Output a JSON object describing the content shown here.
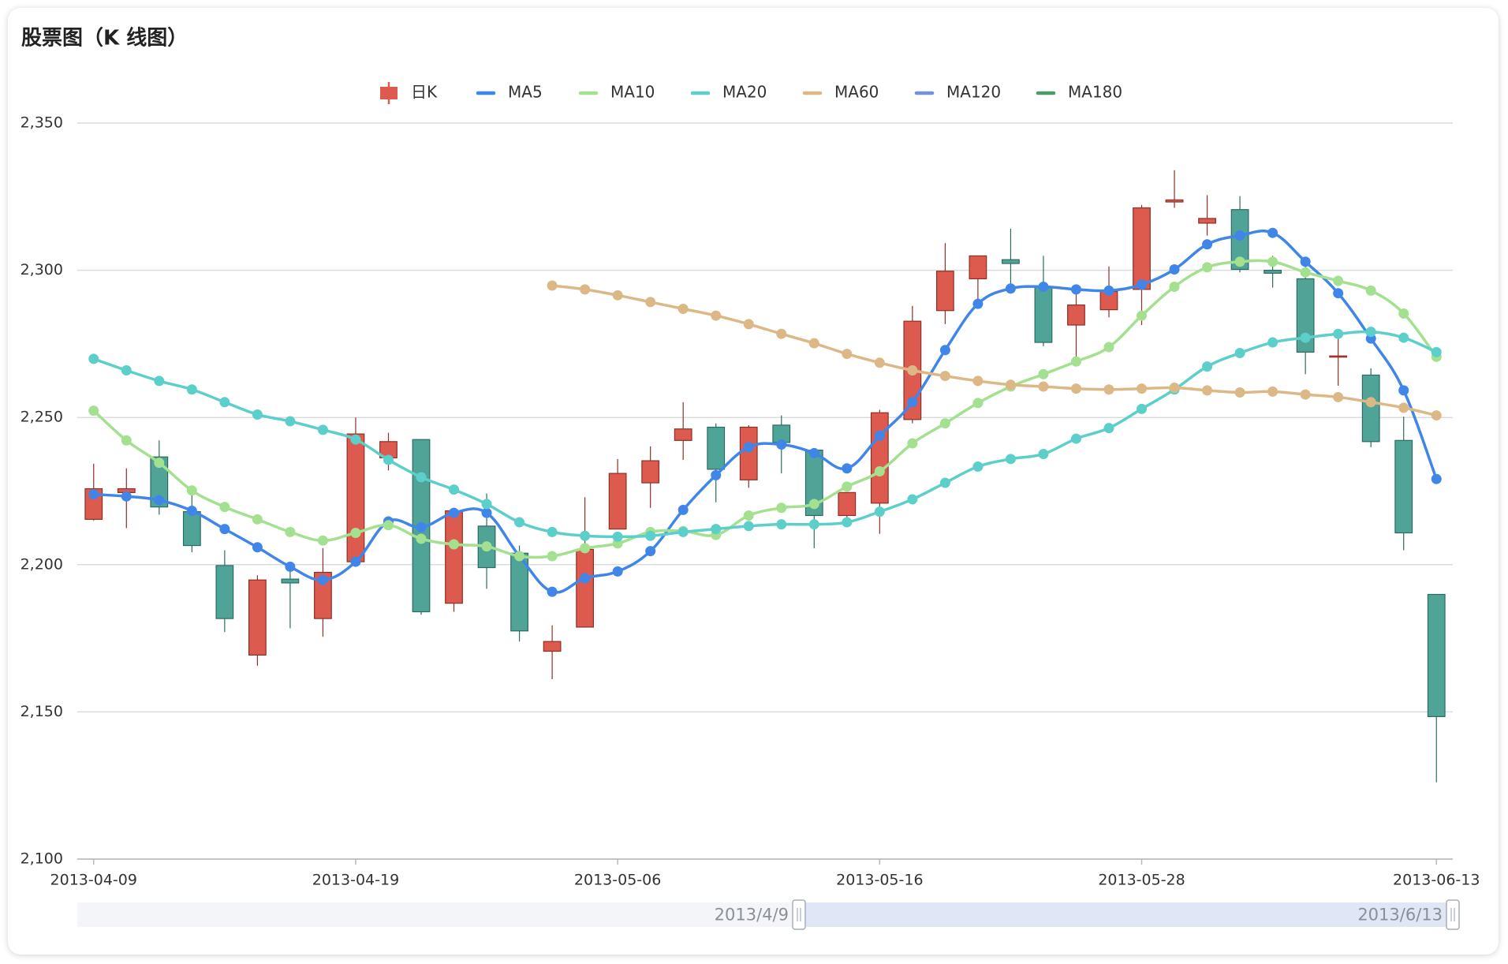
{
  "chart_data": {
    "type": "candlestick",
    "title": "股票图（K 线图）",
    "categories": [
      "2013-04-09",
      null,
      null,
      null,
      null,
      null,
      null,
      null,
      "2013-04-19",
      null,
      null,
      null,
      null,
      null,
      null,
      null,
      "2013-05-06",
      null,
      null,
      null,
      null,
      null,
      null,
      null,
      "2013-05-16",
      null,
      null,
      null,
      null,
      null,
      null,
      null,
      "2013-05-28",
      null,
      null,
      null,
      null,
      null,
      null,
      null,
      null,
      "2013-06-13"
    ],
    "series": [
      {
        "name": "日K",
        "type": "candlestick",
        "up_color": "#dd5a4e",
        "down_color": "#4fa497",
        "open": [
          2215.4,
          2224.5,
          2236.6,
          2218.0,
          2199.7,
          2169.3,
          2195.1,
          2181.7,
          2201.0,
          2236.3,
          2242.5,
          2186.9,
          2213.1,
          2203.9,
          2170.6,
          2178.8,
          2212.1,
          2227.8,
          2242.2,
          2246.7,
          2228.8,
          2247.4,
          2238.9,
          2216.7,
          2220.9,
          2249.3,
          2286.3,
          2297.1,
          2303.6,
          2294.4,
          2281.4,
          2286.6,
          2293.5,
          2323.2,
          2316.0,
          2320.6,
          2300.0,
          2297.1,
          2270.6,
          2264.4,
          2242.2,
          2189.9
        ],
        "close": [
          2225.8,
          2225.8,
          2219.6,
          2206.5,
          2181.7,
          2194.8,
          2193.8,
          2197.4,
          2244.4,
          2241.8,
          2184.0,
          2218.3,
          2199.0,
          2177.5,
          2173.9,
          2205.2,
          2231.0,
          2235.3,
          2246.1,
          2232.4,
          2246.7,
          2241.5,
          2216.7,
          2224.5,
          2251.6,
          2282.7,
          2299.7,
          2304.9,
          2302.3,
          2275.5,
          2288.2,
          2292.8,
          2321.2,
          2323.9,
          2317.6,
          2300.3,
          2299.0,
          2272.2,
          2270.9,
          2241.8,
          2210.8,
          2148.4
        ],
        "low": [
          2215.0,
          2212.4,
          2217.0,
          2204.2,
          2177.1,
          2165.7,
          2178.4,
          2175.5,
          2200.7,
          2232.0,
          2183.0,
          2184.0,
          2191.8,
          2173.9,
          2161.1,
          2178.8,
          2212.1,
          2219.3,
          2235.6,
          2221.2,
          2226.1,
          2231.0,
          2205.6,
          2215.4,
          2210.5,
          2248.0,
          2281.7,
          2289.9,
          2292.2,
          2274.2,
          2269.3,
          2284.0,
          2281.4,
          2321.2,
          2311.8,
          2299.3,
          2294.1,
          2264.7,
          2260.8,
          2239.9,
          2204.9,
          2126.1
        ],
        "high": [
          2234.3,
          2232.7,
          2242.2,
          2225.8,
          2204.9,
          2196.4,
          2197.7,
          2205.6,
          2250.0,
          2244.8,
          2242.5,
          2219.3,
          2224.2,
          2206.5,
          2179.4,
          2222.9,
          2235.9,
          2240.2,
          2255.2,
          2248.0,
          2247.4,
          2250.7,
          2239.5,
          2224.5,
          2252.6,
          2287.9,
          2309.2,
          2304.9,
          2314.1,
          2304.9,
          2294.8,
          2301.3,
          2322.2,
          2334.0,
          2325.5,
          2325.2,
          2304.9,
          2302.9,
          2277.5,
          2266.7,
          2250.3,
          2189.9
        ]
      },
      {
        "name": "MA5",
        "type": "line",
        "color": "#3f86e8",
        "values": [
          2223.9,
          2223.2,
          2221.9,
          2218.3,
          2212.1,
          2205.9,
          2199.3,
          2194.8,
          2201.0,
          2214.7,
          2212.7,
          2217.6,
          2217.6,
          2202.9,
          2190.8,
          2195.4,
          2197.7,
          2204.6,
          2218.6,
          2230.4,
          2239.9,
          2240.8,
          2237.9,
          2232.7,
          2243.8,
          2255.2,
          2272.9,
          2288.6,
          2293.8,
          2294.4,
          2293.5,
          2293.1,
          2295.1,
          2300.3,
          2308.8,
          2311.8,
          2312.7,
          2302.9,
          2292.2,
          2276.8,
          2259.2,
          2229.1
        ]
      },
      {
        "name": "MA10",
        "type": "line",
        "color": "#a3e08f",
        "values": [
          2252.3,
          2242.2,
          2234.6,
          2225.2,
          2219.6,
          2215.4,
          2211.1,
          2208.2,
          2210.8,
          2213.4,
          2208.8,
          2206.9,
          2206.2,
          2202.9,
          2202.9,
          2205.6,
          2207.2,
          2211.1,
          2211.4,
          2210.1,
          2216.7,
          2219.3,
          2220.6,
          2226.5,
          2231.7,
          2241.2,
          2248.0,
          2254.9,
          2260.5,
          2264.7,
          2269.0,
          2273.9,
          2284.6,
          2294.4,
          2301.0,
          2302.9,
          2302.9,
          2299.3,
          2296.4,
          2293.1,
          2285.3,
          2270.6
        ]
      },
      {
        "name": "MA20",
        "type": "line",
        "color": "#5ccfcb",
        "values": [
          2269.9,
          2266.0,
          2262.4,
          2259.5,
          2255.2,
          2251.0,
          2248.7,
          2245.8,
          2242.5,
          2235.6,
          2229.7,
          2225.5,
          2220.6,
          2214.4,
          2211.1,
          2209.8,
          2209.5,
          2209.8,
          2211.1,
          2212.1,
          2213.1,
          2213.7,
          2213.7,
          2214.4,
          2218.0,
          2222.2,
          2227.8,
          2233.3,
          2235.9,
          2237.6,
          2242.8,
          2246.4,
          2252.9,
          2259.5,
          2267.3,
          2271.9,
          2275.5,
          2277.1,
          2278.4,
          2279.1,
          2277.1,
          2272.2
        ]
      },
      {
        "name": "MA60",
        "type": "line",
        "color": "#dcb886",
        "values": [
          null,
          null,
          null,
          null,
          null,
          null,
          null,
          null,
          null,
          null,
          null,
          null,
          null,
          null,
          2294.8,
          2293.5,
          2291.5,
          2289.2,
          2286.9,
          2284.6,
          2281.7,
          2278.4,
          2275.2,
          2271.6,
          2268.6,
          2266.0,
          2264.1,
          2262.4,
          2261.1,
          2260.5,
          2259.8,
          2259.5,
          2259.8,
          2260.1,
          2259.2,
          2258.5,
          2258.8,
          2257.8,
          2256.9,
          2255.2,
          2253.3,
          2250.7
        ]
      },
      {
        "name": "MA120",
        "type": "line",
        "color": "#7591d9",
        "values": [
          null,
          null,
          null,
          null,
          null,
          null,
          null,
          null,
          null,
          null,
          null,
          null,
          null,
          null,
          null,
          null,
          null,
          null,
          null,
          null,
          null,
          null,
          null,
          null,
          null,
          null,
          null,
          null,
          null,
          null,
          null,
          null,
          null,
          null,
          null,
          null,
          null,
          null,
          null,
          null,
          null,
          null
        ]
      },
      {
        "name": "MA180",
        "type": "line",
        "color": "#4a9a6a",
        "values": [
          null,
          null,
          null,
          null,
          null,
          null,
          null,
          null,
          null,
          null,
          null,
          null,
          null,
          null,
          null,
          null,
          null,
          null,
          null,
          null,
          null,
          null,
          null,
          null,
          null,
          null,
          null,
          null,
          null,
          null,
          null,
          null,
          null,
          null,
          null,
          null,
          null,
          null,
          null,
          null,
          null,
          null
        ]
      }
    ],
    "ylim": [
      2100,
      2350
    ],
    "yticks": [
      {
        "value": 2100,
        "label": "2,100"
      },
      {
        "value": 2150,
        "label": "2,150"
      },
      {
        "value": 2200,
        "label": "2,200"
      },
      {
        "value": 2250,
        "label": "2,250"
      },
      {
        "value": 2300,
        "label": "2,300"
      },
      {
        "value": 2350,
        "label": "2,350"
      }
    ],
    "grid": true,
    "datazoom": {
      "start_label": "2013/4/9",
      "end_label": "2013/6/13"
    }
  }
}
